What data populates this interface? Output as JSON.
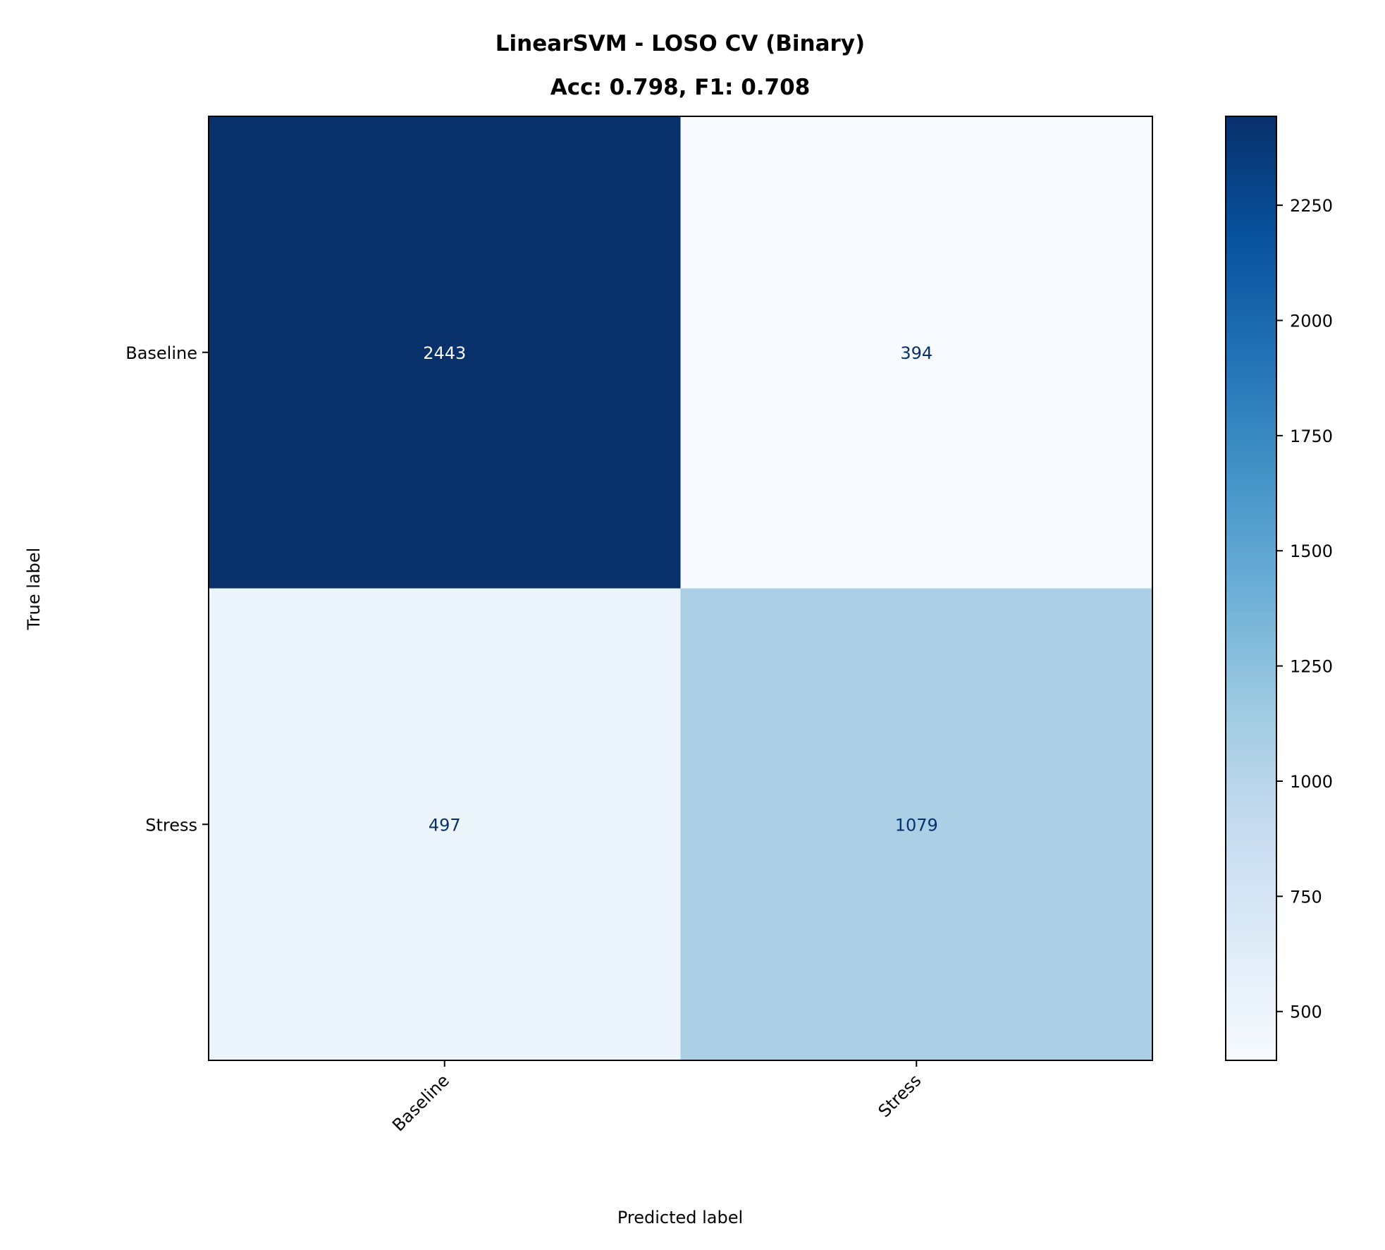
{
  "chart_data": {
    "type": "heatmap",
    "title": "LinearSVM - LOSO CV (Binary)",
    "subtitle": "Acc: 0.798, F1: 0.708",
    "xlabel": "Predicted label",
    "ylabel": "True label",
    "x_categories": [
      "Baseline",
      "Stress"
    ],
    "y_categories": [
      "Baseline",
      "Stress"
    ],
    "values": [
      [
        2443,
        394
      ],
      [
        497,
        1079
      ]
    ],
    "colormap": "Blues",
    "colorbar": {
      "range": [
        394,
        2443
      ],
      "ticks": [
        500,
        750,
        1000,
        1250,
        1500,
        1750,
        2000,
        2250
      ]
    },
    "grid": false
  }
}
